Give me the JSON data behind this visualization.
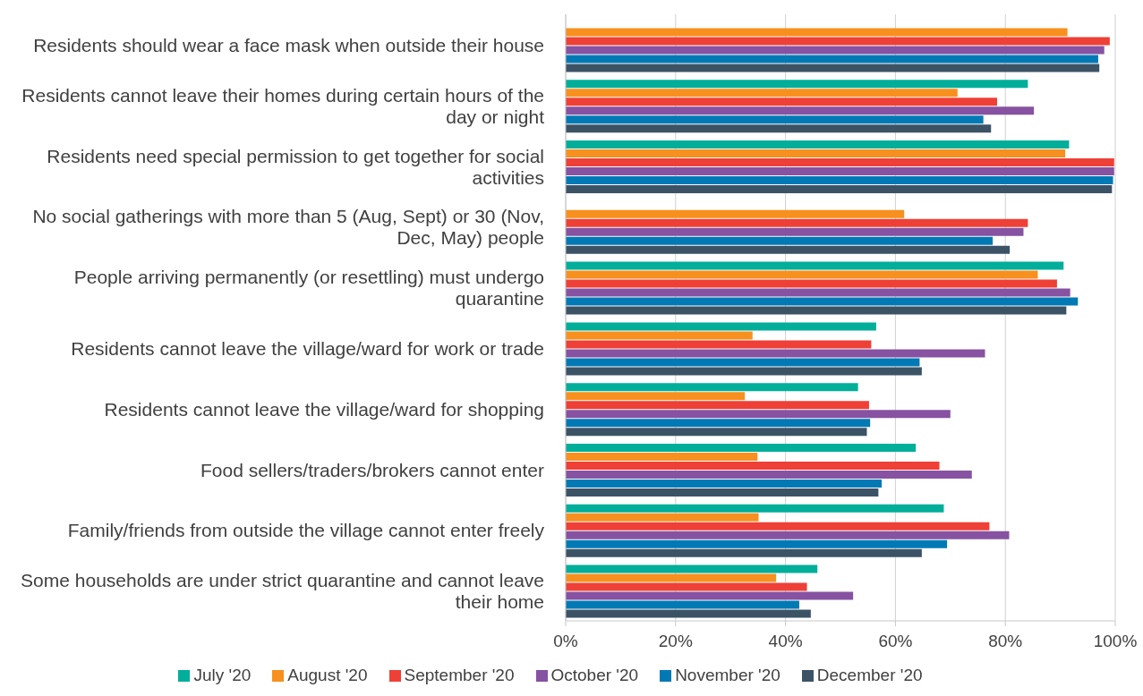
{
  "chart_data": {
    "type": "bar",
    "orientation": "horizontal",
    "categories": [
      "Residents should wear a face mask when outside their house",
      "Residents cannot leave their homes during certain hours of the day or night",
      "Residents need special permission to get together for social activities",
      "No social gatherings with more than 5 (Aug, Sept) or 30 (Nov, Dec, May) people",
      "People arriving permanently (or resettling) must undergo quarantine",
      "Residents cannot leave the village/ward for work or trade",
      "Residents cannot leave the village/ward for shopping",
      "Food sellers/traders/brokers cannot enter",
      "Family/friends from outside the village cannot enter freely",
      "Some households are under strict quarantine and cannot leave their home"
    ],
    "series": [
      {
        "name": "July '20",
        "color": "#00ae9a",
        "values": [
          null,
          84.1,
          91.6,
          null,
          90.6,
          56.5,
          53.2,
          63.7,
          68.8,
          45.8
        ]
      },
      {
        "name": "August '20",
        "color": "#f7901e",
        "values": [
          91.3,
          71.3,
          90.9,
          61.6,
          85.9,
          34.0,
          32.6,
          34.9,
          35.1,
          38.3
        ]
      },
      {
        "name": "September '20",
        "color": "#ee4036",
        "values": [
          99.0,
          78.5,
          99.8,
          84.1,
          89.4,
          55.6,
          55.2,
          68.0,
          77.1,
          43.9
        ]
      },
      {
        "name": "October '20",
        "color": "#8652a1",
        "values": [
          98.0,
          85.2,
          99.8,
          83.3,
          91.8,
          76.3,
          70.0,
          73.9,
          80.7,
          52.3
        ]
      },
      {
        "name": "November '20",
        "color": "#0079b5",
        "values": [
          96.9,
          76.0,
          99.6,
          77.7,
          93.2,
          64.4,
          55.4,
          57.5,
          69.4,
          42.5
        ]
      },
      {
        "name": "December '20",
        "color": "#3c5366",
        "values": [
          97.1,
          77.4,
          99.4,
          80.8,
          91.1,
          64.8,
          54.8,
          56.9,
          64.8,
          44.6
        ]
      }
    ],
    "xlim": [
      0,
      100
    ],
    "xticks": [
      {
        "value": 0,
        "label": "0%"
      },
      {
        "value": 20,
        "label": "20%"
      },
      {
        "value": 40,
        "label": "40%"
      },
      {
        "value": 60,
        "label": "60%"
      },
      {
        "value": 80,
        "label": "80%"
      },
      {
        "value": 100,
        "label": "100%"
      }
    ],
    "grid": "x",
    "legend": "bottom"
  }
}
